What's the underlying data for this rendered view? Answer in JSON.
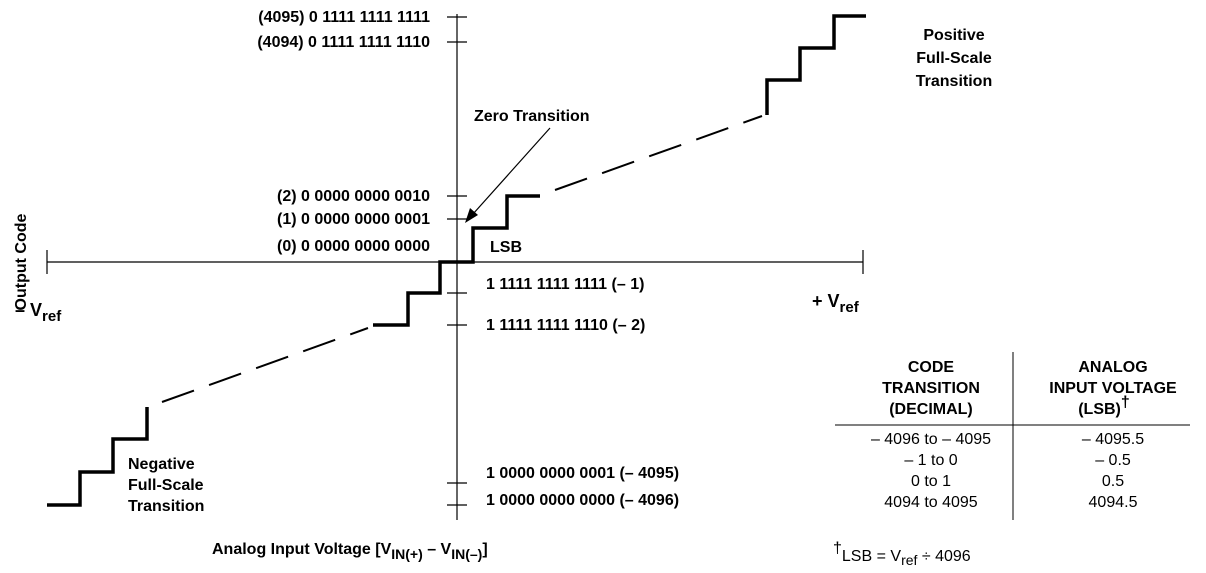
{
  "axes": {
    "y_title": "Output Code",
    "neg_ref_prefix": "– V",
    "pos_ref_prefix": "+ V",
    "ref_subscript": "ref",
    "x_title_prefix": "Analog Input Voltage [V",
    "x_title_sub1": "IN(+)",
    "x_title_mid": " – V",
    "x_title_sub2": "IN(–)",
    "x_title_suffix": "]"
  },
  "codes_upper": [
    "(4095) 0 1111 1111 1111",
    "(4094) 0 1111 1111 1110",
    "(2) 0 0000 0000 0010",
    "(1) 0 0000 0000 0001",
    "(0) 0 0000 0000 0000"
  ],
  "codes_lower": [
    "1 1111 1111 1111 (– 1)",
    "1 1111 1111 1110 (– 2)",
    "1 0000 0000 0001 (– 4095)",
    "1 0000 0000 0000 (– 4096)"
  ],
  "annotations": {
    "zero_transition": "Zero Transition",
    "lsb": "LSB",
    "positive": [
      "Positive",
      "Full-Scale",
      "Transition"
    ],
    "negative": [
      "Negative",
      "Full-Scale",
      "Transition"
    ]
  },
  "table": {
    "headers": {
      "col1": [
        "CODE",
        "TRANSITION",
        "(DECIMAL)"
      ],
      "col2_lines": [
        "ANALOG",
        "INPUT VOLTAGE"
      ],
      "col2_unit": "(LSB)",
      "dagger": "†"
    },
    "rows": [
      [
        "– 4096 to – 4095",
        "– 4095.5"
      ],
      [
        "– 1 to 0",
        "– 0.5"
      ],
      [
        "0 to 1",
        "0.5"
      ],
      [
        "4094 to 4095",
        "4094.5"
      ]
    ]
  },
  "footnote": {
    "dagger": "†",
    "lsb": "LSB = V",
    "ref": "ref",
    "rest": " ÷ 4096"
  }
}
